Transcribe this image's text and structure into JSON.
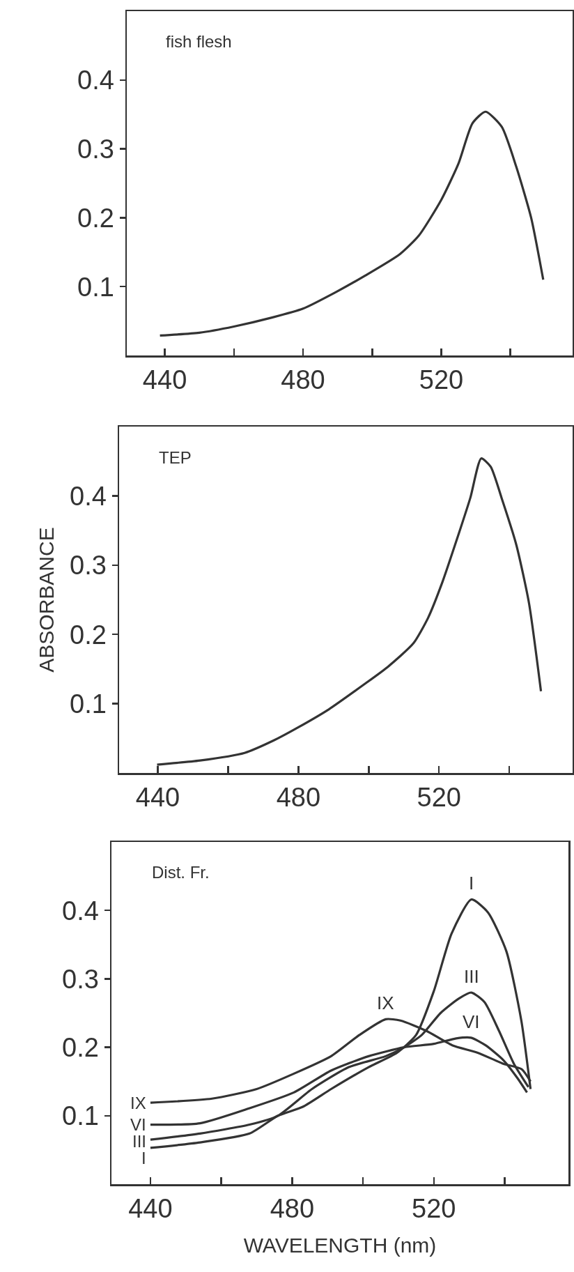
{
  "chart_data": [
    {
      "type": "line",
      "annotations": [
        "fish flesh"
      ],
      "xlim": [
        429,
        558
      ],
      "ylim": [
        0,
        0.5
      ],
      "xticks": [
        440,
        {
          "value": 460,
          "label": null
        },
        480,
        {
          "value": 500,
          "label": null
        },
        520,
        {
          "value": 540,
          "label": null
        }
      ],
      "yticks": [
        0.1,
        0.2,
        0.3,
        0.4
      ],
      "grid": false,
      "legend": false,
      "series": [
        {
          "color": "#333333",
          "x": [
            438.6,
            450,
            460,
            471,
            480,
            489.5,
            498,
            508,
            513.5,
            520,
            525,
            529,
            532.8,
            537.5,
            541.7,
            546,
            549.5
          ],
          "values": [
            0.029,
            0.033,
            0.042,
            0.055,
            0.068,
            0.092,
            0.116,
            0.147,
            0.174,
            0.226,
            0.279,
            0.337,
            0.354,
            0.332,
            0.274,
            0.2,
            0.11
          ]
        }
      ]
    },
    {
      "type": "line",
      "annotations": [
        "TEP"
      ],
      "ylabel": "ABSORBANCE",
      "xlim": [
        429,
        558
      ],
      "ylim": [
        0,
        0.5
      ],
      "xticks": [
        440,
        {
          "value": 460,
          "label": null
        },
        480,
        {
          "value": 500,
          "label": null
        },
        520,
        {
          "value": 540,
          "label": null
        }
      ],
      "yticks": [
        0.1,
        0.2,
        0.3,
        0.4
      ],
      "grid": false,
      "legend": false,
      "series": [
        {
          "color": "#333333",
          "x": [
            439.8,
            452,
            464.7,
            473,
            480,
            488.7,
            499,
            505.4,
            512.7,
            516.9,
            521,
            525.2,
            528.9,
            532,
            534.7,
            537.8,
            542,
            545.6,
            549
          ],
          "values": [
            0.012,
            0.018,
            0.029,
            0.047,
            0.066,
            0.092,
            0.129,
            0.153,
            0.187,
            0.224,
            0.276,
            0.339,
            0.397,
            0.454,
            0.442,
            0.397,
            0.329,
            0.245,
            0.118
          ]
        }
      ]
    },
    {
      "type": "line",
      "annotations": [
        "Dist. Fr."
      ],
      "xlabel": "WAVELENGTH (nm)",
      "xlim": [
        429,
        558
      ],
      "ylim": [
        0,
        0.5
      ],
      "xticks": [
        440,
        {
          "value": 460,
          "label": null
        },
        480,
        {
          "value": 500,
          "label": null
        },
        520,
        {
          "value": 540,
          "label": null
        }
      ],
      "yticks": [
        0.1,
        0.2,
        0.3,
        0.4
      ],
      "grid": false,
      "legend": false,
      "series": [
        {
          "name": "I",
          "color": "#333333",
          "x": [
            440,
            454,
            468,
            476,
            483,
            491,
            501.6,
            509.6,
            515,
            520,
            525,
            530.6,
            535.3,
            540.5,
            544.7,
            547.3
          ],
          "values": [
            0.053,
            0.061,
            0.074,
            0.1,
            0.113,
            0.139,
            0.171,
            0.192,
            0.218,
            0.282,
            0.366,
            0.416,
            0.397,
            0.34,
            0.239,
            0.139
          ]
        },
        {
          "name": "III",
          "color": "#333333",
          "x": [
            440,
            454,
            468,
            476,
            485.6,
            496,
            506.4,
            511.6,
            516.6,
            521.9,
            527,
            530.6,
            534.3,
            538.4,
            542.6,
            546.7
          ],
          "values": [
            0.065,
            0.074,
            0.087,
            0.1,
            0.139,
            0.171,
            0.187,
            0.2,
            0.218,
            0.25,
            0.271,
            0.28,
            0.266,
            0.224,
            0.176,
            0.142
          ]
        },
        {
          "name": "VI",
          "color": "#333333",
          "x": [
            440,
            454,
            468,
            480.5,
            491,
            501.6,
            511.6,
            520,
            526.3,
            530.5,
            534.6,
            539.5,
            543.6,
            546.3
          ],
          "values": [
            0.087,
            0.089,
            0.111,
            0.134,
            0.166,
            0.187,
            0.2,
            0.205,
            0.213,
            0.214,
            0.203,
            0.182,
            0.155,
            0.134
          ]
        },
        {
          "name": "IX",
          "color": "#333333",
          "x": [
            440,
            457.4,
            470,
            480.3,
            491,
            499,
            506.4,
            510.6,
            517.9,
            525.2,
            532.4,
            539.6,
            544.8,
            547.3
          ],
          "values": [
            0.119,
            0.125,
            0.139,
            0.161,
            0.187,
            0.218,
            0.241,
            0.239,
            0.224,
            0.203,
            0.192,
            0.176,
            0.168,
            0.15
          ]
        }
      ]
    }
  ]
}
